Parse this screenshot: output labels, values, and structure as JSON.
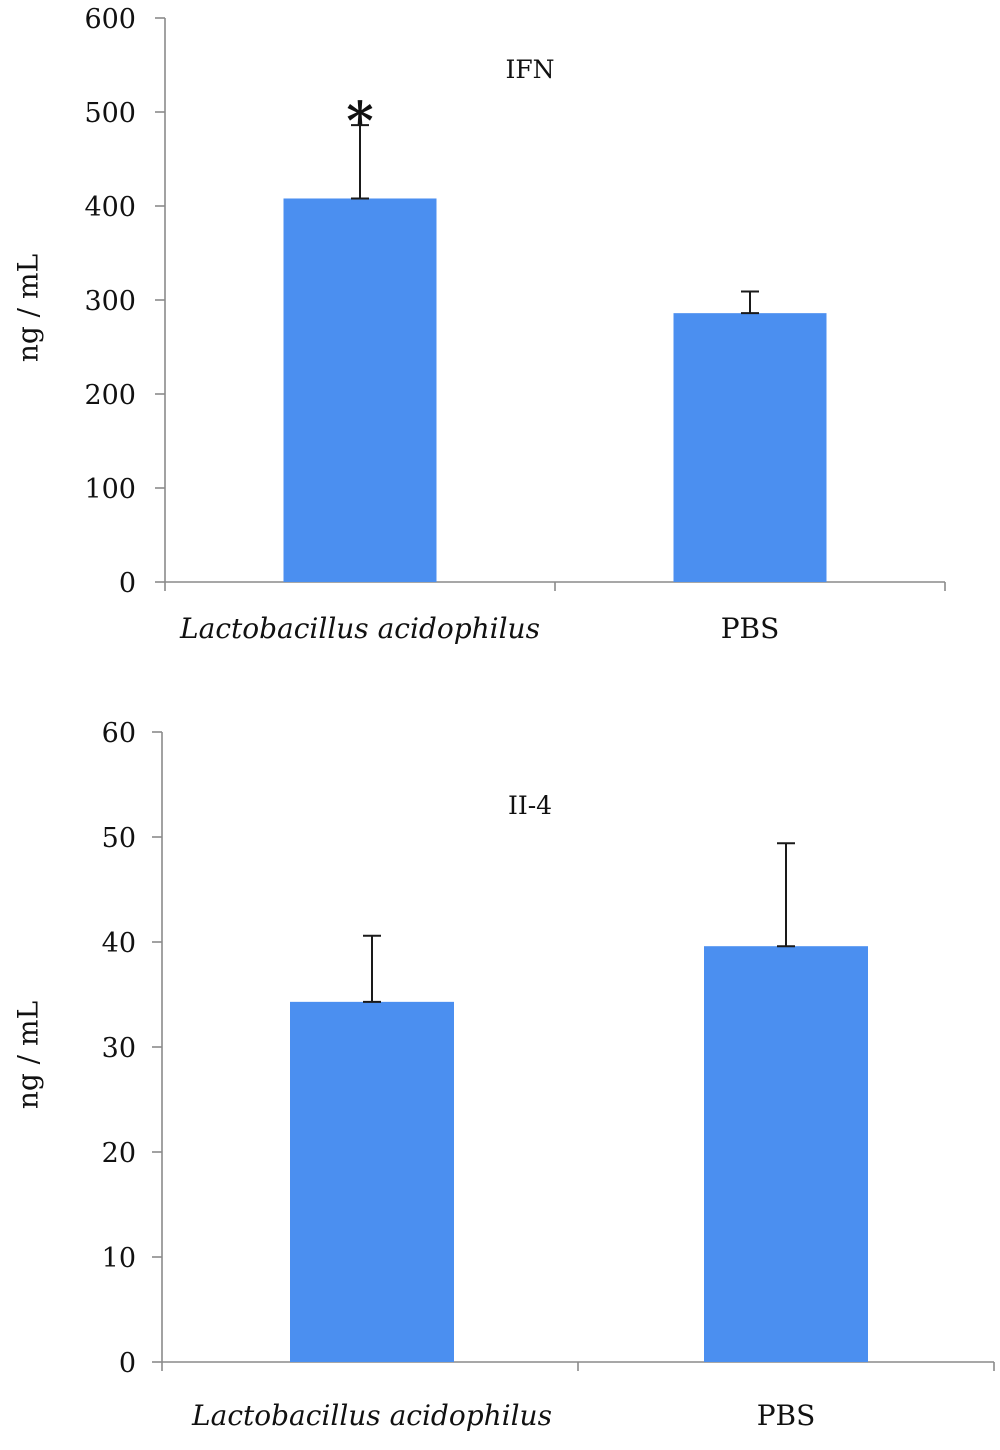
{
  "colors": {
    "bar": "#4b8ff0",
    "axis": "#8a8a8a",
    "error_bar": "#1a1a1a"
  },
  "chart_data": [
    {
      "type": "bar",
      "title": "IFN",
      "categories": [
        "Lactobacillus acidophilus",
        "PBS"
      ],
      "italic_categories": [
        true,
        false
      ],
      "values": [
        408,
        286
      ],
      "error_upper": [
        78,
        23
      ],
      "ylabel": "ng / mL",
      "ylim": [
        0,
        600
      ],
      "yticks": [
        0,
        100,
        200,
        300,
        400,
        500,
        600
      ],
      "annotations": [
        {
          "category": "Lactobacillus acidophilus",
          "text": "*"
        }
      ],
      "grid": false
    },
    {
      "type": "bar",
      "title": "II-4",
      "categories": [
        "Lactobacillus acidophilus",
        "PBS"
      ],
      "italic_categories": [
        true,
        false
      ],
      "values": [
        34.3,
        39.6
      ],
      "error_upper": [
        6.3,
        9.8
      ],
      "ylabel": "ng / mL",
      "ylim": [
        0,
        60
      ],
      "yticks": [
        0,
        10,
        20,
        30,
        40,
        50,
        60
      ],
      "annotations": [],
      "grid": false
    }
  ]
}
